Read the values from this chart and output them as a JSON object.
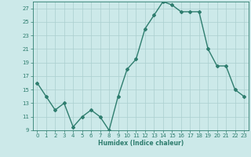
{
  "x": [
    0,
    1,
    2,
    3,
    4,
    5,
    6,
    7,
    8,
    9,
    10,
    11,
    12,
    13,
    14,
    15,
    16,
    17,
    18,
    19,
    20,
    21,
    22,
    23
  ],
  "y": [
    16,
    14,
    12,
    13,
    9.5,
    11,
    12,
    11,
    9,
    14,
    18,
    19.5,
    24,
    26,
    28,
    27.5,
    26.5,
    26.5,
    26.5,
    21,
    18.5,
    18.5,
    15,
    14
  ],
  "line_color": "#2e7d6e",
  "marker": "D",
  "marker_size": 2.0,
  "bg_color": "#cce9e9",
  "grid_color": "#aacfcf",
  "xlabel": "Humidex (Indice chaleur)",
  "ylim": [
    9,
    28
  ],
  "yticks": [
    9,
    11,
    13,
    15,
    17,
    19,
    21,
    23,
    25,
    27
  ],
  "xlim": [
    -0.5,
    23.5
  ],
  "xticks": [
    0,
    1,
    2,
    3,
    4,
    5,
    6,
    7,
    8,
    9,
    10,
    11,
    12,
    13,
    14,
    15,
    16,
    17,
    18,
    19,
    20,
    21,
    22,
    23
  ]
}
